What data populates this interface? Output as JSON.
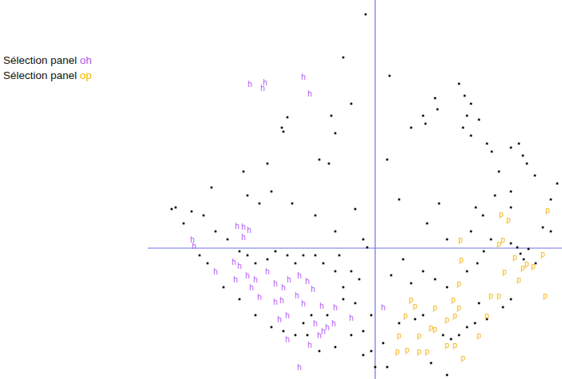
{
  "chart_data": {
    "type": "scatter",
    "xlim": [
      -285,
      234
    ],
    "ylim": [
      -164,
      311
    ],
    "tick_labels": false,
    "grid": false,
    "legend": "left",
    "series": [
      {
        "color": "#000000",
        "marker": "square",
        "x": [
          -12,
          -40,
          18,
          -30,
          -55,
          -50,
          -58,
          -70,
          -115,
          -110,
          -117,
          -135,
          -165,
          -205,
          -160,
          -145,
          -130,
          -104,
          -75,
          -50,
          -25,
          -15,
          -10,
          -45,
          15,
          45,
          60,
          63,
          75,
          78,
          105,
          112,
          120,
          115,
          110,
          120,
          130,
          140,
          146,
          155,
          170,
          180,
          185,
          190,
          200,
          170,
          150,
          135,
          126,
          120,
          90,
          80,
          65,
          30,
          35,
          20,
          45,
          60,
          75,
          90,
          115,
          128,
          136,
          145,
          170,
          178,
          182,
          186,
          192,
          201,
          220,
          228,
          220,
          210,
          170,
          90,
          70,
          50,
          30,
          60,
          85,
          95,
          105,
          115,
          125,
          140,
          160,
          170,
          130,
          10,
          0,
          15,
          -5,
          -20,
          -30,
          -40,
          -50,
          -65,
          -75,
          -90,
          -100,
          -110,
          -125,
          -135,
          -150,
          -160,
          -170,
          -185,
          -200,
          -215,
          -230,
          -240,
          -250,
          -255,
          -220,
          -210,
          -190,
          -170,
          -150,
          -130,
          -115,
          -100,
          -85,
          -70,
          -50,
          -30,
          -15,
          -5,
          -15,
          -60,
          -40,
          -25,
          -80,
          -90
        ],
        "values": [
          293,
          239,
          216,
          181,
          166,
          144,
          106,
          111,
          146,
          164,
          151,
          106,
          96,
          76,
          66,
          56,
          71,
          56,
          41,
          21,
          49,
          11,
          1,
          -9,
          111,
          151,
          166,
          156,
          188,
          174,
          206,
          191,
          181,
          166,
          151,
          141,
          161,
          131,
          121,
          96,
          126,
          131,
          116,
          106,
          91,
          71,
          66,
          41,
          51,
          21,
          11,
          56,
          31,
          61,
          -14,
          -34,
          -44,
          -29,
          -39,
          -49,
          -29,
          -19,
          -4,
          11,
          6,
          1,
          -7,
          -14,
          -1,
          -19,
          21,
          81,
          61,
          26,
          51,
          -159,
          -144,
          -89,
          -94,
          -84,
          -109,
          -114,
          -109,
          -99,
          -94,
          -89,
          -74,
          -64,
          -69,
          -119,
          -149,
          -149,
          -84,
          -39,
          -29,
          -49,
          -29,
          -19,
          -9,
          -9,
          -19,
          -9,
          -4,
          -14,
          -19,
          -9,
          -4,
          11,
          21,
          41,
          46,
          31,
          51,
          49,
          -9,
          -19,
          -49,
          -64,
          -84,
          -99,
          -104,
          -109,
          -109,
          -129,
          -124,
          -109,
          -104,
          -129,
          -134,
          -84,
          -64,
          -69,
          -84,
          -94
        ]
      },
      {
        "name": "Sélection panel oh",
        "color": "#b05cf0",
        "marker": "h",
        "x": [
          -157,
          -138,
          -141,
          -90,
          -82,
          -229,
          -227,
          -173,
          -165,
          -158,
          -165,
          -177,
          -170,
          -160,
          -150,
          -135,
          -125,
          -115,
          -108,
          -95,
          -85,
          -98,
          -78,
          -90,
          -67,
          -50,
          -75,
          -65,
          -60,
          -52,
          -70,
          -125,
          -120,
          -110,
          -145,
          -155,
          -175,
          -30,
          -95,
          10,
          -117,
          -200,
          -110,
          -82
        ],
        "values": [
          206,
          208,
          201,
          215,
          194,
          11,
          3,
          28,
          27,
          23,
          14,
          -17,
          -22,
          -34,
          -39,
          -29,
          -44,
          -49,
          -39,
          -34,
          -41,
          -59,
          -51,
          -69,
          -72,
          -74,
          -94,
          -104,
          -99,
          -94,
          -109,
          -67,
          -89,
          -84,
          -61,
          -49,
          -39,
          -87,
          -149,
          -74,
          -65,
          -29,
          -114,
          -121
        ]
      },
      {
        "name": "Sélection panel op",
        "color": "#f5b700",
        "marker": "p",
        "x": [
          158,
          167,
          160,
          155,
          175,
          190,
          185,
          198,
          210,
          216,
          213,
          180,
          107,
          108,
          105,
          45,
          50,
          38,
          70,
          90,
          100,
          75,
          55,
          30,
          28,
          40,
          55,
          65,
          90,
          100,
          110,
          130,
          140,
          98,
          105,
          145,
          155,
          162,
          75
        ],
        "values": [
          43,
          36,
          11,
          6,
          -11,
          -19,
          -24,
          -22,
          -7,
          48,
          -59,
          -39,
          11,
          -14,
          -44,
          -64,
          -72,
          -84,
          -99,
          -89,
          -84,
          -74,
          -109,
          -109,
          -129,
          -127,
          -129,
          -129,
          -121,
          -121,
          -137,
          -109,
          -84,
          -64,
          -74,
          -59,
          -59,
          -29,
          -101
        ]
      }
    ]
  }
}
